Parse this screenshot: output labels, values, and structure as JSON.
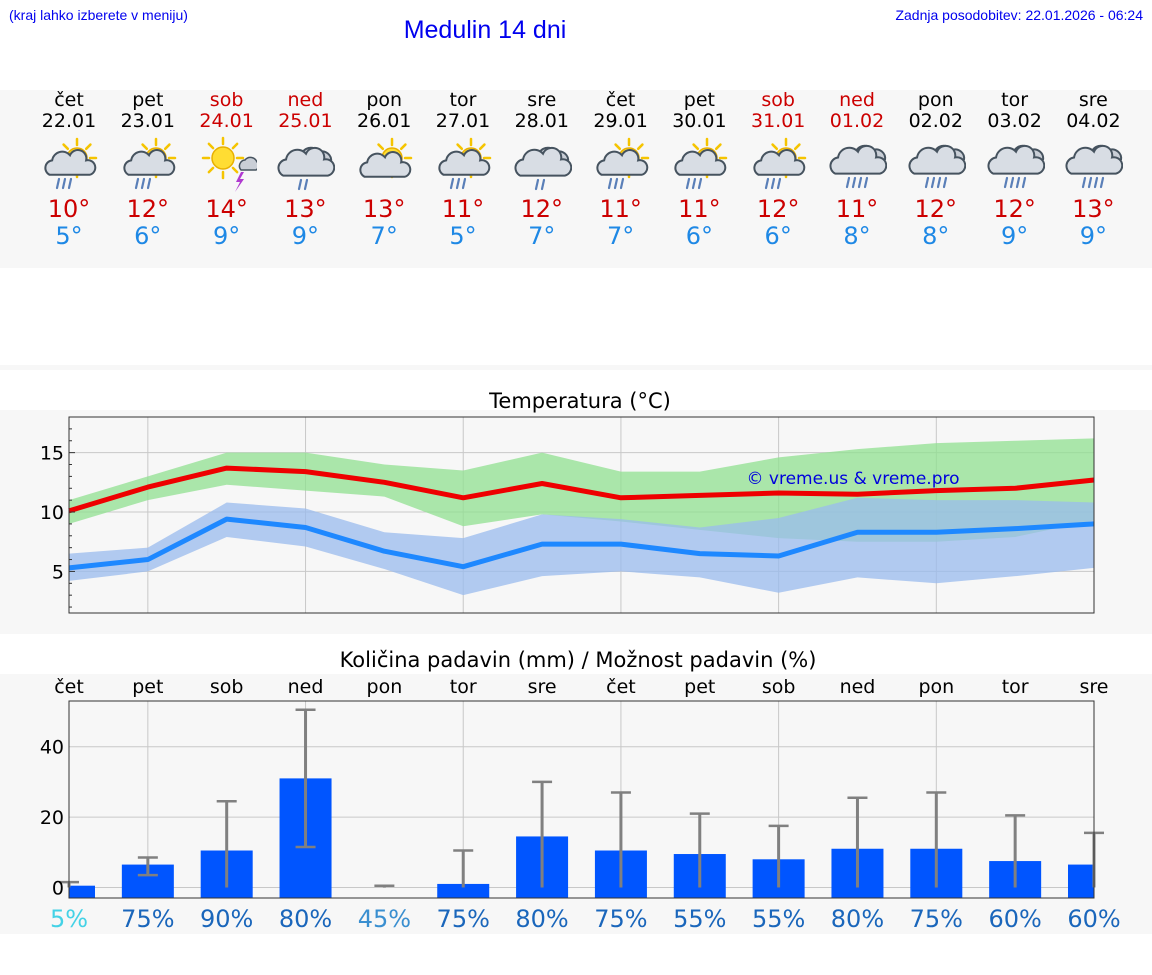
{
  "header": {
    "hint": "(kraj lahko izberete v meniju)",
    "title": "Medulin 14 dni",
    "updated": "Zadnja posodobitev: 22.01.2026 - 06:24"
  },
  "colors": {
    "link": "#0000ee",
    "max": "#cc0000",
    "min": "#1e88e5",
    "bar": "#0055ff"
  },
  "days": [
    {
      "name": "čet",
      "date": "22.01",
      "weekend": false,
      "icon": "sun-cloud-rain-icon",
      "max": "10°",
      "min": "5°"
    },
    {
      "name": "pet",
      "date": "23.01",
      "weekend": false,
      "icon": "sun-cloud-rain-icon",
      "max": "12°",
      "min": "6°"
    },
    {
      "name": "sob",
      "date": "24.01",
      "weekend": true,
      "icon": "sun-storm-icon",
      "max": "14°",
      "min": "9°"
    },
    {
      "name": "ned",
      "date": "25.01",
      "weekend": true,
      "icon": "cloud-rain-icon",
      "max": "13°",
      "min": "9°"
    },
    {
      "name": "pon",
      "date": "26.01",
      "weekend": false,
      "icon": "sun-cloud-icon",
      "max": "13°",
      "min": "7°"
    },
    {
      "name": "tor",
      "date": "27.01",
      "weekend": false,
      "icon": "sun-cloud-rain-icon",
      "max": "11°",
      "min": "5°"
    },
    {
      "name": "sre",
      "date": "28.01",
      "weekend": false,
      "icon": "cloud-rain-icon",
      "max": "12°",
      "min": "7°"
    },
    {
      "name": "čet",
      "date": "29.01",
      "weekend": false,
      "icon": "sun-cloud-rain-icon",
      "max": "11°",
      "min": "7°"
    },
    {
      "name": "pet",
      "date": "30.01",
      "weekend": false,
      "icon": "sun-cloud-rain-icon",
      "max": "11°",
      "min": "6°"
    },
    {
      "name": "sob",
      "date": "31.01",
      "weekend": true,
      "icon": "sun-cloud-rain-icon",
      "max": "12°",
      "min": "6°"
    },
    {
      "name": "ned",
      "date": "01.02",
      "weekend": true,
      "icon": "cloud-heavy-rain-icon",
      "max": "11°",
      "min": "8°"
    },
    {
      "name": "pon",
      "date": "02.02",
      "weekend": false,
      "icon": "cloud-heavy-rain-icon",
      "max": "12°",
      "min": "8°"
    },
    {
      "name": "tor",
      "date": "03.02",
      "weekend": false,
      "icon": "cloud-heavy-rain-icon",
      "max": "12°",
      "min": "9°"
    },
    {
      "name": "sre",
      "date": "04.02",
      "weekend": false,
      "icon": "cloud-heavy-rain-icon",
      "max": "13°",
      "min": "9°"
    }
  ],
  "chart_data": [
    {
      "type": "line",
      "title": "Temperatura (°C)",
      "watermark": "© vreme.us & vreme.pro",
      "ylim": [
        1.5,
        18
      ],
      "yticks": [
        5,
        10,
        15
      ],
      "series": [
        {
          "name": "max",
          "color": "#ee0000",
          "values": [
            10.1,
            12.1,
            13.7,
            13.4,
            12.5,
            11.2,
            12.4,
            11.2,
            11.4,
            11.6,
            11.5,
            11.8,
            12.0,
            12.7
          ],
          "band_low": [
            9.0,
            11.0,
            12.3,
            11.8,
            11.3,
            8.8,
            9.8,
            9.2,
            8.5,
            7.8,
            7.5,
            7.5,
            7.9,
            9.3
          ],
          "band_high": [
            11.0,
            13.0,
            15.0,
            15.0,
            14.0,
            13.5,
            15.0,
            13.4,
            13.4,
            14.6,
            15.3,
            15.8,
            16.0,
            16.2
          ],
          "band_color": "#90e090"
        },
        {
          "name": "min",
          "color": "#1e88ff",
          "values": [
            5.3,
            6.0,
            9.4,
            8.7,
            6.7,
            5.4,
            7.3,
            7.3,
            6.5,
            6.3,
            8.3,
            8.3,
            8.6,
            9.0
          ],
          "band_low": [
            4.2,
            5.0,
            7.9,
            7.1,
            5.2,
            3.0,
            4.6,
            5.0,
            4.5,
            3.2,
            4.5,
            4.0,
            4.6,
            5.3
          ],
          "band_high": [
            6.5,
            7.0,
            10.8,
            10.3,
            8.3,
            7.8,
            9.8,
            9.4,
            8.7,
            9.5,
            11.2,
            11.0,
            11.0,
            10.8
          ],
          "band_color": "#99bbee"
        }
      ]
    },
    {
      "type": "bar",
      "title": "Količina padavin (mm) / Možnost padavin (%)",
      "categories": [
        "čet",
        "pet",
        "sob",
        "ned",
        "pon",
        "tor",
        "sre",
        "čet",
        "pet",
        "sob",
        "ned",
        "pon",
        "tor",
        "sre"
      ],
      "values": [
        0.5,
        6.5,
        10.5,
        31,
        0,
        1,
        14.5,
        10.5,
        9.5,
        8,
        11,
        11,
        7.5,
        6.5
      ],
      "err_low": [
        0,
        3.5,
        0,
        11.5,
        0,
        0,
        0,
        0,
        0,
        0,
        0,
        0,
        0,
        0
      ],
      "err_high": [
        1.5,
        8.5,
        24.5,
        50.5,
        0.5,
        10.5,
        30,
        27,
        21,
        17.5,
        25.5,
        27,
        20.5,
        15.5
      ],
      "ylim": [
        -3,
        53
      ],
      "yticks": [
        0,
        20,
        40
      ],
      "probabilities": [
        "5%",
        "75%",
        "90%",
        "80%",
        "45%",
        "75%",
        "80%",
        "75%",
        "55%",
        "55%",
        "80%",
        "75%",
        "60%",
        "60%"
      ],
      "prob_colors": [
        "#44d2e6",
        "#1a66bb",
        "#1a66bb",
        "#1a66bb",
        "#3a8fd0",
        "#1a66bb",
        "#1a66bb",
        "#1a66bb",
        "#1a66bb",
        "#1a66bb",
        "#1a66bb",
        "#1a66bb",
        "#1a66bb",
        "#1a66bb"
      ]
    }
  ]
}
